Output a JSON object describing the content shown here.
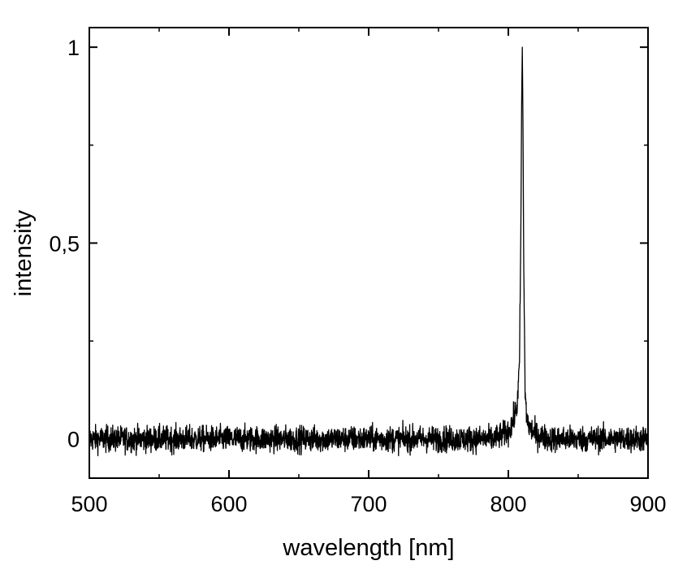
{
  "chart_data": {
    "type": "line",
    "title": "",
    "xlabel": "wavelength [nm]",
    "ylabel": "intensity",
    "xlim": [
      500,
      900
    ],
    "ylim": [
      -0.1,
      1.05
    ],
    "x_ticks": [
      500,
      600,
      700,
      800,
      900
    ],
    "x_tick_labels": [
      "500",
      "600",
      "700",
      "800",
      "900"
    ],
    "y_ticks": [
      0,
      0.5,
      1
    ],
    "y_tick_labels": [
      "0",
      "0,5",
      "1"
    ],
    "x_minor_ticks": [
      550,
      650,
      750,
      850
    ],
    "y_minor_ticks": [
      0.25,
      0.75
    ],
    "grid": false,
    "legend": "none",
    "line_color": "#000000",
    "series": [
      {
        "x": [
          500,
          550,
          600,
          650,
          700,
          750,
          780,
          790,
          795,
          800,
          803,
          806,
          807,
          808,
          809,
          809.5,
          810,
          810.5,
          811,
          812,
          813,
          815,
          820,
          830,
          850,
          880,
          900
        ],
        "y": [
          0.0,
          0.0,
          0.0,
          0.0,
          0.0,
          0.0,
          0.0,
          0.0,
          0.01,
          0.02,
          0.04,
          0.08,
          0.12,
          0.2,
          0.55,
          0.85,
          1.0,
          0.8,
          0.45,
          0.12,
          0.06,
          0.03,
          0.01,
          0.0,
          0.0,
          0.0,
          0.0
        ],
        "noise_amplitude": 0.03
      }
    ]
  }
}
